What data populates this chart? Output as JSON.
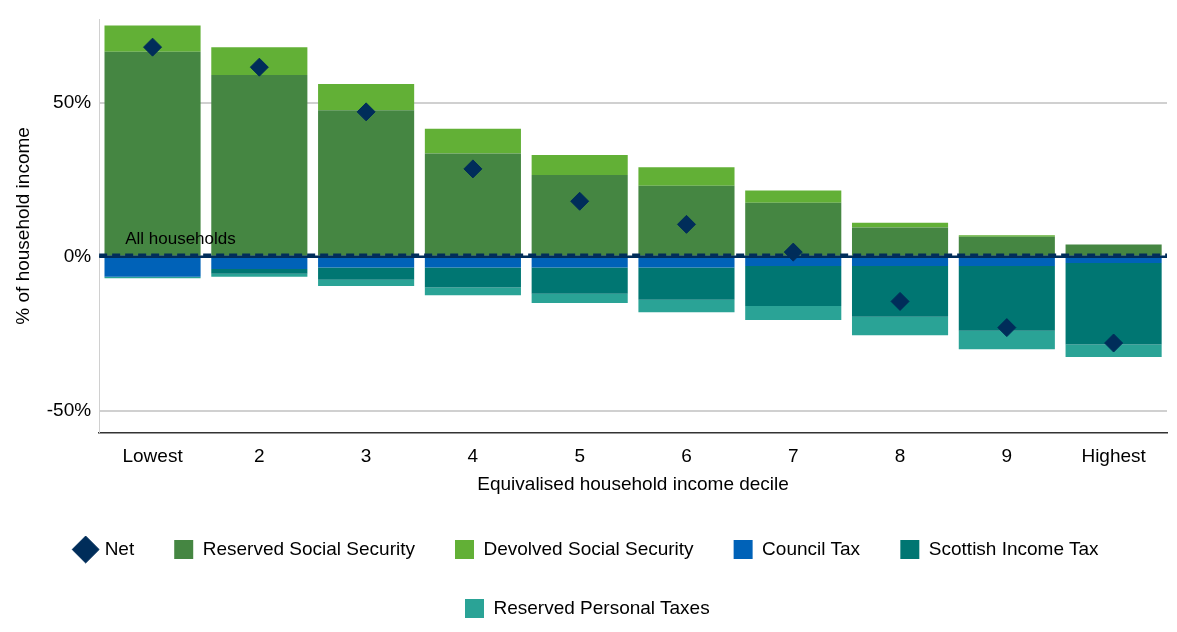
{
  "chart_data": {
    "type": "bar",
    "stacked": true,
    "xlabel": "Equivalised household income decile",
    "ylabel": "% of household income",
    "categories": [
      "Lowest",
      "2",
      "3",
      "4",
      "5",
      "6",
      "7",
      "8",
      "9",
      "Highest"
    ],
    "series": [
      {
        "name": "Reserved Social Security",
        "color": "#458642",
        "values": [
          66.5,
          59,
          47.5,
          33.5,
          26.5,
          23,
          17.5,
          9.5,
          6.5,
          4
        ]
      },
      {
        "name": "Devolved Social Security",
        "color": "#62b036",
        "values": [
          8.5,
          9,
          8.5,
          8,
          6.5,
          6,
          4,
          1.5,
          0.5,
          0
        ]
      },
      {
        "name": "Council Tax",
        "color": "#0062b8",
        "values": [
          -6.5,
          -4,
          -3.5,
          -3.5,
          -3.5,
          -3.5,
          -3,
          -3,
          -3,
          -2
        ]
      },
      {
        "name": "Scottish Income Tax",
        "color": "#007672",
        "values": [
          0,
          -1.5,
          -4,
          -6.5,
          -8.5,
          -10.5,
          -13,
          -16.5,
          -21,
          -26.5
        ]
      },
      {
        "name": "Reserved Personal Taxes",
        "color": "#2aa396",
        "values": [
          -0.5,
          -1,
          -2,
          -2.5,
          -3,
          -4,
          -4.5,
          -6,
          -6,
          -4
        ]
      },
      {
        "name": "Net",
        "type": "scatter",
        "marker": "diamond",
        "color": "#002d5a",
        "x": [
          "Lowest",
          "2",
          "3",
          "4",
          "5",
          "6",
          "7",
          "8",
          "9",
          "Highest"
        ],
        "values": [
          68,
          61.5,
          47,
          28.5,
          18,
          10.5,
          1.5,
          -14.5,
          -23,
          -28
        ]
      }
    ],
    "ylim": [
      -57,
      77
    ],
    "yticks": [
      {
        "value": -50,
        "label": "-50%"
      },
      {
        "value": 0,
        "label": "0%"
      },
      {
        "value": 50,
        "label": "50%"
      }
    ],
    "grid": "y",
    "legend": "bottom",
    "ref_lines": [
      {
        "axis": "y",
        "value": 0.5,
        "label": "All households",
        "color": "#002d5a",
        "line_style": "dashed"
      }
    ]
  }
}
